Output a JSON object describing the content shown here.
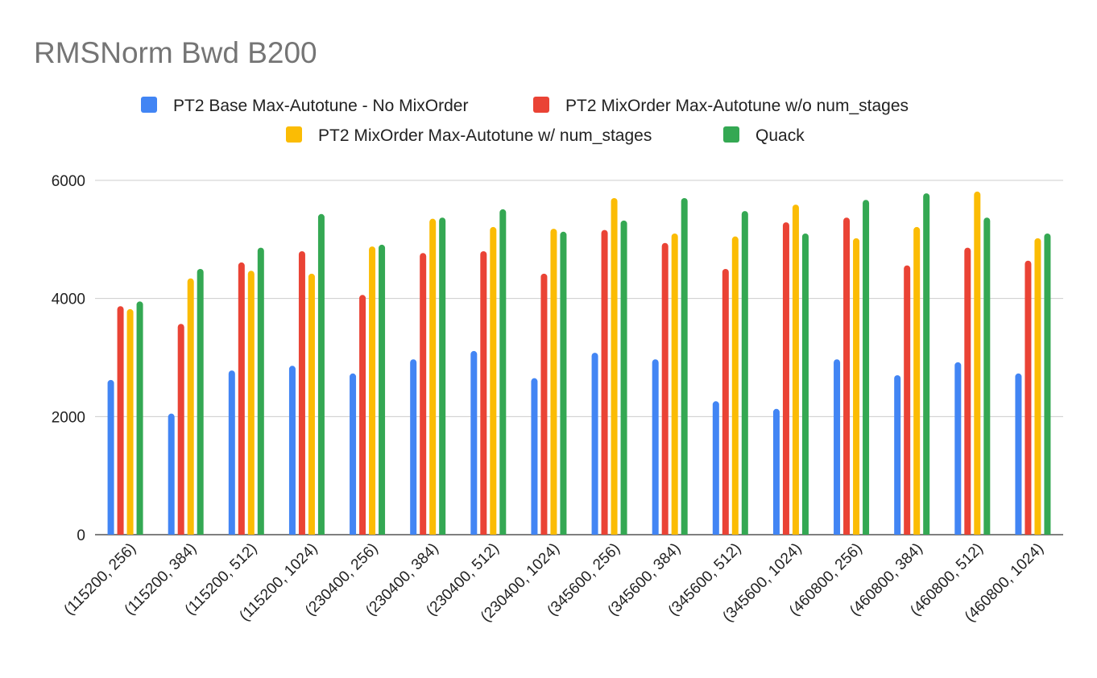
{
  "chart_data": {
    "type": "bar",
    "title": "RMSNorm Bwd B200",
    "xlabel": "",
    "ylabel": "",
    "ylim": [
      0,
      6000
    ],
    "yticks": [
      0,
      2000,
      4000,
      6000
    ],
    "grid": true,
    "legend_position": "top",
    "categories": [
      "(115200, 256)",
      "(115200, 384)",
      "(115200, 512)",
      "(115200, 1024)",
      "(230400, 256)",
      "(230400, 384)",
      "(230400, 512)",
      "(230400, 1024)",
      "(345600, 256)",
      "(345600, 384)",
      "(345600, 512)",
      "(345600, 1024)",
      "(460800, 256)",
      "(460800, 384)",
      "(460800, 512)",
      "(460800, 1024)"
    ],
    "series": [
      {
        "name": "PT2 Base Max-Autotune - No MixOrder",
        "color": "#4285f4",
        "values": [
          2620,
          2050,
          2780,
          2860,
          2730,
          2970,
          3110,
          2650,
          3080,
          2970,
          2260,
          2130,
          2970,
          2700,
          2920,
          2730
        ]
      },
      {
        "name": "PT2 MixOrder Max-Autotune w/o num_stages",
        "color": "#ea4335",
        "values": [
          3870,
          3570,
          4610,
          4800,
          4060,
          4770,
          4800,
          4420,
          5160,
          4940,
          4500,
          5290,
          5370,
          4560,
          4860,
          4640
        ]
      },
      {
        "name": "PT2 MixOrder Max-Autotune w/ num_stages",
        "color": "#fbbc04",
        "values": [
          3820,
          4340,
          4470,
          4420,
          4880,
          5350,
          5210,
          5180,
          5700,
          5100,
          5050,
          5590,
          5020,
          5210,
          5810,
          5020
        ]
      },
      {
        "name": "Quack",
        "color": "#34a853",
        "values": [
          3950,
          4500,
          4860,
          5430,
          4910,
          5370,
          5510,
          5130,
          5320,
          5700,
          5480,
          5100,
          5670,
          5780,
          5370,
          5100
        ]
      }
    ]
  }
}
